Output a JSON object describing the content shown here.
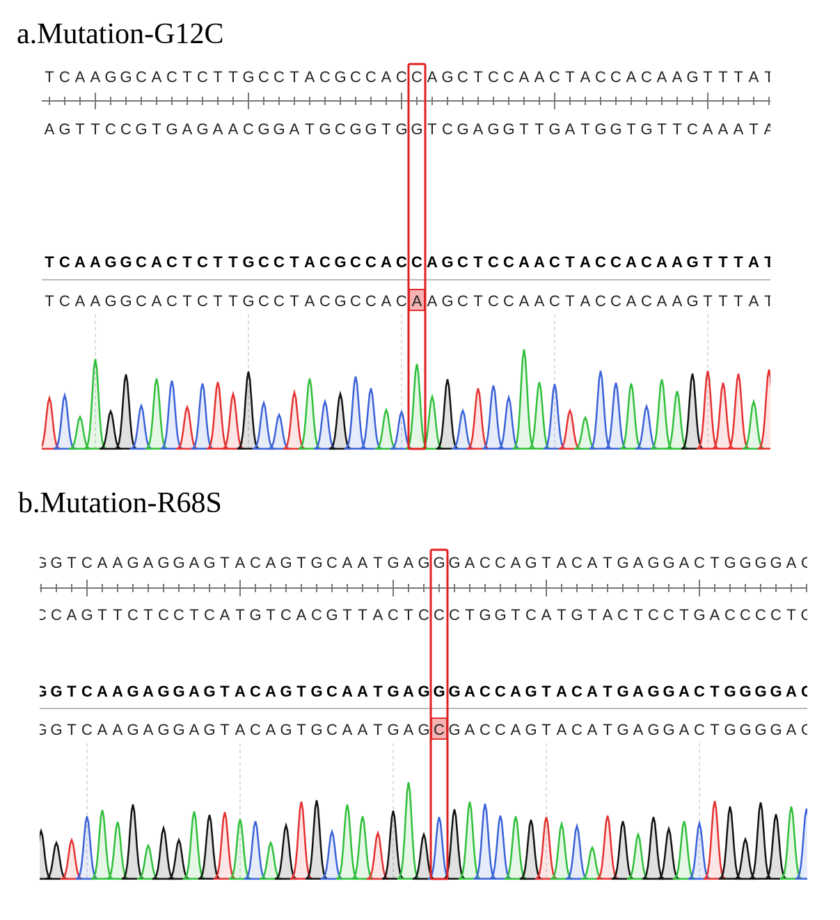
{
  "panels": [
    {
      "title": "a.Mutation-G12C",
      "reference": "TCAAGGCACTCTTGCCTACGCCACCAGCTCCAACTACCACAAGTTTATA",
      "complement": "AGTTCCGTGAGAACGGATGCGGTGGTCGAGGTTGATGGTGTTCAAATAT",
      "consensus": "TCAAGGCACTCTTGCCTACGCCACCAGCTCCAACTACCACAAGTTTATA",
      "read": "TCAAGGCACTCTTGCCTACGCCACAAGCTCCAACTACCACAAGTTTATA"
    },
    {
      "title": "b.Mutation-R68S",
      "reference": "GGTCAAGAGGAGTACAGTGCAATGAGGGACCAGTACATGAGGACTGGGGAC",
      "complement": "CCAGTTCTCCTCATGTCACGTTACTCCCTGGTCATGTACTCCTGACCCCTG",
      "consensus": "GGTCAAGAGGAGTACAGTGCAATGAGGGACCAGTACATGAGGACTGGGGAC",
      "read": "GGTCAAGAGGAGTACAGTGCAATGAGCGACCAGTACATGAGGACTGGGGAC"
    }
  ]
}
